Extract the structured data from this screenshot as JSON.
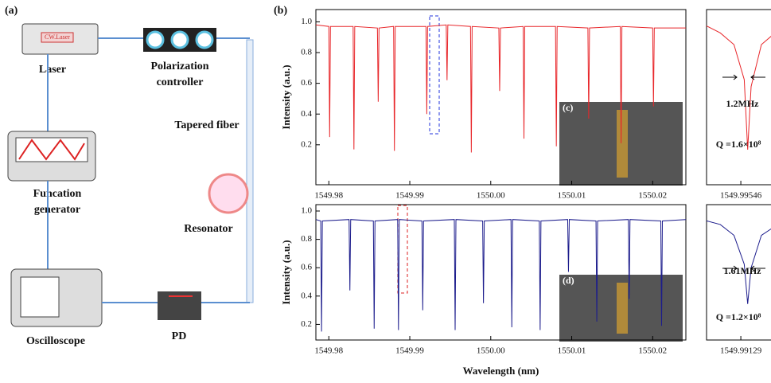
{
  "diagram": {
    "panel_label": "(a)",
    "laser": "Laser",
    "laser_box": "CW.Laser",
    "polarization": [
      "Polarization",
      "controller"
    ],
    "tapered_fiber": "Tapered fiber",
    "resonator": "Resonator",
    "function_generator": [
      "Funcation",
      "generator"
    ],
    "oscilloscope": "Oscilloscope",
    "pd": "PD"
  },
  "panel_b_label": "(b)",
  "chart_data": [
    {
      "type": "line",
      "y_label": "Intensity (a.u.)",
      "inset_label": "(c)",
      "xlim": [
        1549.9784,
        1550.0241
      ],
      "ylim": [
        -0.06,
        1.08
      ],
      "xticks": [
        1549.98,
        1549.99,
        {
          "value": 1550.0,
          "label": "1550.00"
        },
        1550.01,
        1550.02
      ],
      "yticks": [
        0.2,
        0.4,
        0.6,
        0.8,
        {
          "value": 1.0,
          "label": "1.0"
        }
      ],
      "series": [
        {
          "color": "#e8262a",
          "x": [
            1549.9784,
            1549.98,
            1549.9801,
            1549.9802,
            1549.983,
            1549.9831,
            1549.9832,
            1549.986,
            1549.9861,
            1549.9862,
            1549.988,
            1549.9881,
            1549.9882,
            1549.992,
            1549.9921,
            1549.9922,
            1549.9945,
            1549.9946,
            1549.9947,
            1549.9975,
            1549.9976,
            1549.9977,
            1550.001,
            1550.0011,
            1550.0012,
            1550.004,
            1550.0041,
            1550.0042,
            1550.008,
            1550.0081,
            1550.0082,
            1550.012,
            1550.0121,
            1550.0122,
            1550.016,
            1550.0161,
            1550.0162,
            1550.02,
            1550.0201,
            1550.0202,
            1550.0241
          ],
          "values": [
            0.98,
            0.97,
            0.25,
            0.97,
            0.97,
            0.17,
            0.97,
            0.96,
            0.48,
            0.96,
            0.97,
            0.16,
            0.97,
            0.97,
            0.4,
            0.97,
            0.98,
            0.62,
            0.98,
            0.97,
            0.15,
            0.97,
            0.96,
            0.55,
            0.96,
            0.97,
            0.24,
            0.97,
            0.97,
            0.19,
            0.97,
            0.96,
            0.37,
            0.96,
            0.97,
            0.21,
            0.97,
            0.96,
            0.45,
            0.96,
            0.96
          ]
        }
      ]
    },
    {
      "type": "line",
      "y_label": "Intensity (a.u.)",
      "x_label": "Wavelength (nm)",
      "inset_label": "(d)",
      "xlim": [
        1549.9784,
        1550.0241
      ],
      "ylim": [
        0.09,
        1.045
      ],
      "xticks": [
        1549.98,
        1549.99,
        {
          "value": 1550.0,
          "label": "1550.00"
        },
        1550.01,
        1550.02
      ],
      "yticks": [
        0.2,
        0.4,
        0.6,
        0.8,
        {
          "value": 1.0,
          "label": "1.0"
        }
      ],
      "series": [
        {
          "color": "#1c1c8c",
          "x": [
            1549.9784,
            1549.979,
            1549.9791,
            1549.9792,
            1549.9825,
            1549.9826,
            1549.9827,
            1549.9855,
            1549.9856,
            1549.9857,
            1549.9885,
            1549.9886,
            1549.9887,
            1549.9915,
            1549.9916,
            1549.9917,
            1549.9955,
            1549.9956,
            1549.9957,
            1549.999,
            1549.9991,
            1549.9992,
            1550.0025,
            1550.0026,
            1550.0027,
            1550.006,
            1550.0061,
            1550.0062,
            1550.0095,
            1550.0096,
            1550.0097,
            1550.013,
            1550.0131,
            1550.0132,
            1550.017,
            1550.0171,
            1550.0172,
            1550.021,
            1550.0211,
            1550.0212,
            1550.0241
          ],
          "values": [
            0.94,
            0.93,
            0.15,
            0.93,
            0.94,
            0.44,
            0.94,
            0.93,
            0.17,
            0.93,
            0.94,
            0.16,
            0.94,
            0.93,
            0.3,
            0.93,
            0.94,
            0.16,
            0.94,
            0.93,
            0.35,
            0.93,
            0.94,
            0.18,
            0.94,
            0.93,
            0.16,
            0.93,
            0.94,
            0.57,
            0.94,
            0.93,
            0.22,
            0.93,
            0.94,
            0.38,
            0.94,
            0.93,
            0.19,
            0.93,
            0.94
          ]
        }
      ]
    },
    {
      "type": "line",
      "annotations": [
        "1.2MHz",
        "Q =1.6×10⁸"
      ],
      "xlim": [
        1549.995455,
        1549.995468
      ],
      "ylim": [
        0.3,
        1.05
      ],
      "xticks": [
        1549.99546
      ],
      "series": [
        {
          "color": "#e8262a",
          "x": [
            1549.995455,
            1549.995457,
            1549.995459,
            1549.9954605,
            1549.995461,
            1549.9954615,
            1549.995463,
            1549.995465,
            1549.995468
          ],
          "values": [
            0.98,
            0.95,
            0.9,
            0.75,
            0.45,
            0.72,
            0.9,
            0.95,
            0.97
          ]
        }
      ]
    },
    {
      "type": "line",
      "annotations": [
        "1.61MHz",
        "Q =1.2×10⁸"
      ],
      "xlim": [
        1549.991285,
        1549.991298
      ],
      "ylim": [
        0.3,
        1.05
      ],
      "xticks": [
        1549.99129
      ],
      "series": [
        {
          "color": "#1c1c8c",
          "x": [
            1549.991285,
            1549.991287,
            1549.991289,
            1549.9912905,
            1549.991291,
            1549.9912915,
            1549.991293,
            1549.991295,
            1549.991298
          ],
          "values": [
            0.96,
            0.94,
            0.88,
            0.72,
            0.5,
            0.7,
            0.88,
            0.93,
            0.95
          ]
        }
      ]
    }
  ]
}
